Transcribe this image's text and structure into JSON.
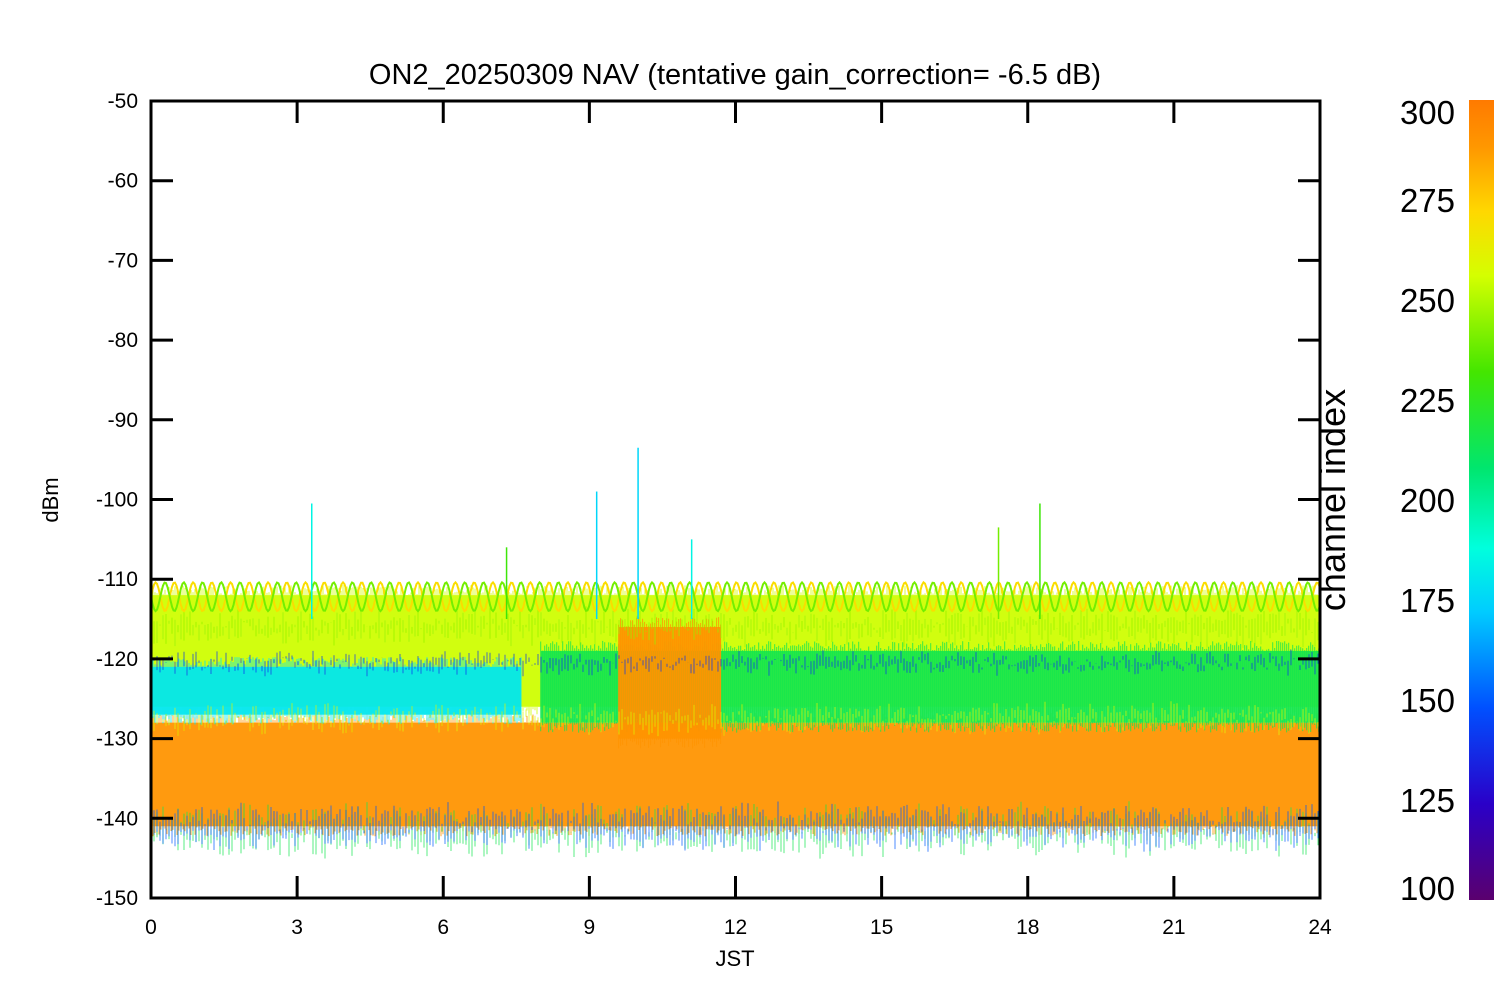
{
  "chart_data": {
    "type": "scatter",
    "title": "ON2_20250309 NAV (tentative gain_correction= -6.5 dB)",
    "xlabel": "JST",
    "ylabel": "dBm",
    "xlim": [
      0,
      24
    ],
    "ylim": [
      -150,
      -50
    ],
    "xticks": [
      "0",
      "3",
      "6",
      "9",
      "12",
      "15",
      "18",
      "21",
      "24"
    ],
    "yticks": [
      "-50",
      "-60",
      "-70",
      "-80",
      "-90",
      "-100",
      "-110",
      "-120",
      "-130",
      "-140",
      "-150"
    ],
    "colorbar": {
      "label": "channel index",
      "range": [
        100,
        300
      ],
      "ticks": [
        "100",
        "125",
        "150",
        "175",
        "200",
        "225",
        "250",
        "275",
        "300"
      ],
      "colormap": "rainbow"
    },
    "bands": [
      {
        "name": "",
        "channel_index": 290,
        "x": [
          0,
          24
        ],
        "y_min": -141,
        "y_max": -128
      },
      {
        "name": "",
        "channel_index": 255,
        "x": [
          0,
          24
        ],
        "y_min": -126,
        "y_max": -112
      },
      {
        "name": "",
        "channel_index": 180,
        "x": [
          0,
          7.6
        ],
        "y_min": -127,
        "y_max": -121
      },
      {
        "name": "",
        "channel_index": 215,
        "x": [
          8,
          24
        ],
        "y_min": -128,
        "y_max": -119
      },
      {
        "name": "",
        "channel_index": 290,
        "x": [
          9.6,
          11.7
        ],
        "y_min": -130,
        "y_max": -116
      }
    ],
    "spikes": [
      {
        "x": 3.3,
        "y": -100.5,
        "channel_index": 185
      },
      {
        "x": 9.15,
        "y": -99,
        "channel_index": 175
      },
      {
        "x": 10.0,
        "y": -93.5,
        "channel_index": 175
      },
      {
        "x": 11.1,
        "y": -105,
        "channel_index": 185
      },
      {
        "x": 7.3,
        "y": -106,
        "channel_index": 230
      },
      {
        "x": 17.4,
        "y": -103.5,
        "channel_index": 240
      },
      {
        "x": 18.25,
        "y": -100.5,
        "channel_index": 230
      }
    ],
    "grid": false
  }
}
